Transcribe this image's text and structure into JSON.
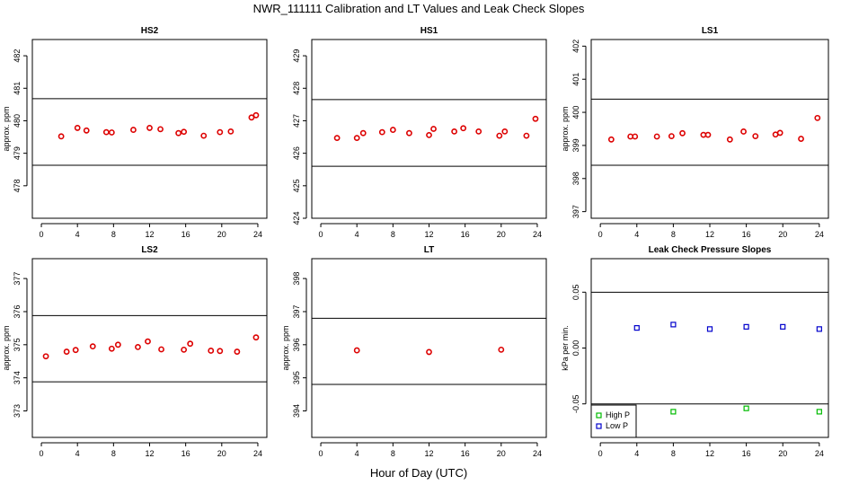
{
  "figure": {
    "title": "NWR_111111  Calibration and LT Values and Leak Check Slopes",
    "xlabel": "Hour of Day (UTC)"
  },
  "chart_data": [
    {
      "id": "hs2",
      "type": "scatter",
      "title": "HS2",
      "ylabel": "approx. ppm",
      "xlim": [
        -1,
        25
      ],
      "ylim": [
        477,
        482.5
      ],
      "xticks": [
        0,
        4,
        8,
        12,
        16,
        20,
        24
      ],
      "yticks": [
        478,
        479,
        480,
        481,
        482
      ],
      "hlines": [
        480.68,
        478.63
      ],
      "series": [
        {
          "name": "values",
          "color": "#dd0000",
          "marker": "circle",
          "x": [
            2.2,
            4.0,
            5.0,
            7.2,
            7.8,
            10.2,
            12.0,
            13.2,
            15.2,
            15.8,
            18.0,
            19.8,
            21.0,
            23.3,
            23.8
          ],
          "y": [
            479.52,
            479.78,
            479.7,
            479.65,
            479.64,
            479.72,
            479.78,
            479.74,
            479.62,
            479.66,
            479.54,
            479.65,
            479.67,
            480.1,
            480.17
          ]
        }
      ]
    },
    {
      "id": "hs1",
      "type": "scatter",
      "title": "HS1",
      "ylabel": "",
      "xlim": [
        -1,
        25
      ],
      "ylim": [
        424,
        429.5
      ],
      "xticks": [
        0,
        4,
        8,
        12,
        16,
        20,
        24
      ],
      "yticks": [
        424,
        425,
        426,
        427,
        428,
        429
      ],
      "hlines": [
        427.65,
        425.6
      ],
      "series": [
        {
          "name": "values",
          "color": "#dd0000",
          "marker": "circle",
          "x": [
            1.8,
            4.0,
            4.7,
            6.8,
            8.0,
            9.8,
            12.0,
            12.5,
            14.8,
            15.8,
            17.5,
            19.8,
            20.4,
            22.8,
            23.8
          ],
          "y": [
            426.47,
            426.47,
            426.62,
            426.65,
            426.72,
            426.62,
            426.56,
            426.75,
            426.67,
            426.77,
            426.67,
            426.54,
            426.67,
            426.54,
            427.06
          ]
        }
      ]
    },
    {
      "id": "ls1",
      "type": "scatter",
      "title": "LS1",
      "ylabel": "approx. ppm",
      "xlim": [
        -1,
        25
      ],
      "ylim": [
        396.8,
        402.2
      ],
      "xticks": [
        0,
        4,
        8,
        12,
        16,
        20,
        24
      ],
      "yticks": [
        397,
        398,
        399,
        400,
        401,
        402
      ],
      "hlines": [
        400.4,
        398.4
      ],
      "series": [
        {
          "name": "values",
          "color": "#dd0000",
          "marker": "circle",
          "x": [
            1.2,
            3.3,
            3.8,
            6.2,
            7.8,
            9.0,
            11.3,
            11.8,
            14.2,
            15.7,
            17.0,
            19.2,
            19.7,
            22.0,
            23.8
          ],
          "y": [
            399.18,
            399.27,
            399.27,
            399.27,
            399.28,
            399.37,
            399.32,
            399.32,
            399.18,
            399.42,
            399.28,
            399.33,
            399.38,
            399.2,
            399.83
          ]
        }
      ]
    },
    {
      "id": "ls2",
      "type": "scatter",
      "title": "LS2",
      "ylabel": "approx. ppm",
      "xlim": [
        -1,
        25
      ],
      "ylim": [
        372.2,
        377.6
      ],
      "xticks": [
        0,
        4,
        8,
        12,
        16,
        20,
        24
      ],
      "yticks": [
        373,
        374,
        375,
        376,
        377
      ],
      "hlines": [
        375.88,
        373.88
      ],
      "series": [
        {
          "name": "values",
          "color": "#dd0000",
          "marker": "circle",
          "x": [
            0.5,
            2.8,
            3.8,
            5.7,
            7.8,
            8.5,
            10.7,
            11.8,
            13.3,
            15.8,
            16.5,
            18.8,
            19.8,
            21.7,
            23.8
          ],
          "y": [
            374.65,
            374.79,
            374.84,
            374.95,
            374.88,
            375.0,
            374.93,
            375.1,
            374.86,
            374.85,
            375.03,
            374.82,
            374.81,
            374.79,
            375.22
          ]
        }
      ]
    },
    {
      "id": "lt",
      "type": "scatter",
      "title": "LT",
      "ylabel": "approx. ppm",
      "xlim": [
        -1,
        25
      ],
      "ylim": [
        393.2,
        398.6
      ],
      "xticks": [
        0,
        4,
        8,
        12,
        16,
        20,
        24
      ],
      "yticks": [
        394,
        395,
        396,
        397,
        398
      ],
      "hlines": [
        396.8,
        394.8
      ],
      "series": [
        {
          "name": "values",
          "color": "#dd0000",
          "marker": "circle",
          "x": [
            4.0,
            12.0,
            20.0
          ],
          "y": [
            395.83,
            395.78,
            395.85
          ]
        }
      ]
    },
    {
      "id": "leak",
      "type": "scatter",
      "title": "Leak Check Pressure Slopes",
      "ylabel": "kPa per min.",
      "xlim": [
        -1,
        25
      ],
      "ylim": [
        -0.08,
        0.08
      ],
      "xticks": [
        0,
        4,
        8,
        12,
        16,
        20,
        24
      ],
      "yticks": [
        -0.05,
        0.0,
        0.05
      ],
      "ytick_labels": [
        "-0.05",
        "0.00",
        "0.05"
      ],
      "hlines": [
        0.05,
        -0.05
      ],
      "legend": {
        "position": "bottom-left",
        "entries": [
          "High P",
          "Low P"
        ]
      },
      "series": [
        {
          "name": "High P",
          "color": "#00bb00",
          "marker": "square",
          "x": [
            8,
            16,
            24
          ],
          "y": [
            -0.057,
            -0.054,
            -0.057
          ]
        },
        {
          "name": "Low P",
          "color": "#0000cc",
          "marker": "square",
          "x": [
            4,
            8,
            12,
            16,
            20,
            24
          ],
          "y": [
            0.018,
            0.021,
            0.017,
            0.019,
            0.019,
            0.017
          ]
        }
      ]
    }
  ]
}
